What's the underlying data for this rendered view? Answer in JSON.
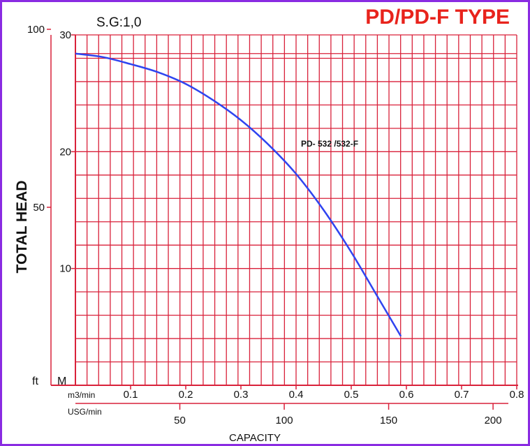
{
  "chart_data": {
    "type": "line",
    "title": "PD/PD-F TYPE",
    "subtitle": "S.G:1,0",
    "ylabel": "TOTAL  HEAD",
    "xlabel": "CAPACITY",
    "y_units": {
      "ft": "ft",
      "m": "M"
    },
    "x_units": {
      "m3": "m3/min",
      "usg": "USG/min"
    },
    "ylim_m": [
      0,
      30
    ],
    "xlim_m3": [
      0,
      0.8
    ],
    "y_ticks_m": [
      "10",
      "20",
      "30"
    ],
    "y_ticks_ft": [
      "50",
      "100"
    ],
    "x_ticks_m3": [
      "0.1",
      "0.2",
      "0.3",
      "0.4",
      "0.5",
      "0.6",
      "0.7",
      "0.8"
    ],
    "x_ticks_usg": [
      "50",
      "100",
      "150",
      "200"
    ],
    "grid": true,
    "colors": {
      "grid": "#d9213a",
      "curve": "#2f44f0",
      "title": "#e8231c",
      "frame": "#8a2be2"
    },
    "series": [
      {
        "name": "PD- 532 /532-F",
        "x": [
          0.0,
          0.05,
          0.1,
          0.15,
          0.2,
          0.25,
          0.3,
          0.35,
          0.4,
          0.45,
          0.5,
          0.55,
          0.59
        ],
        "y": [
          28.4,
          28.1,
          27.5,
          26.8,
          25.8,
          24.4,
          22.7,
          20.6,
          18.1,
          15.0,
          11.4,
          7.4,
          4.2
        ]
      }
    ]
  }
}
